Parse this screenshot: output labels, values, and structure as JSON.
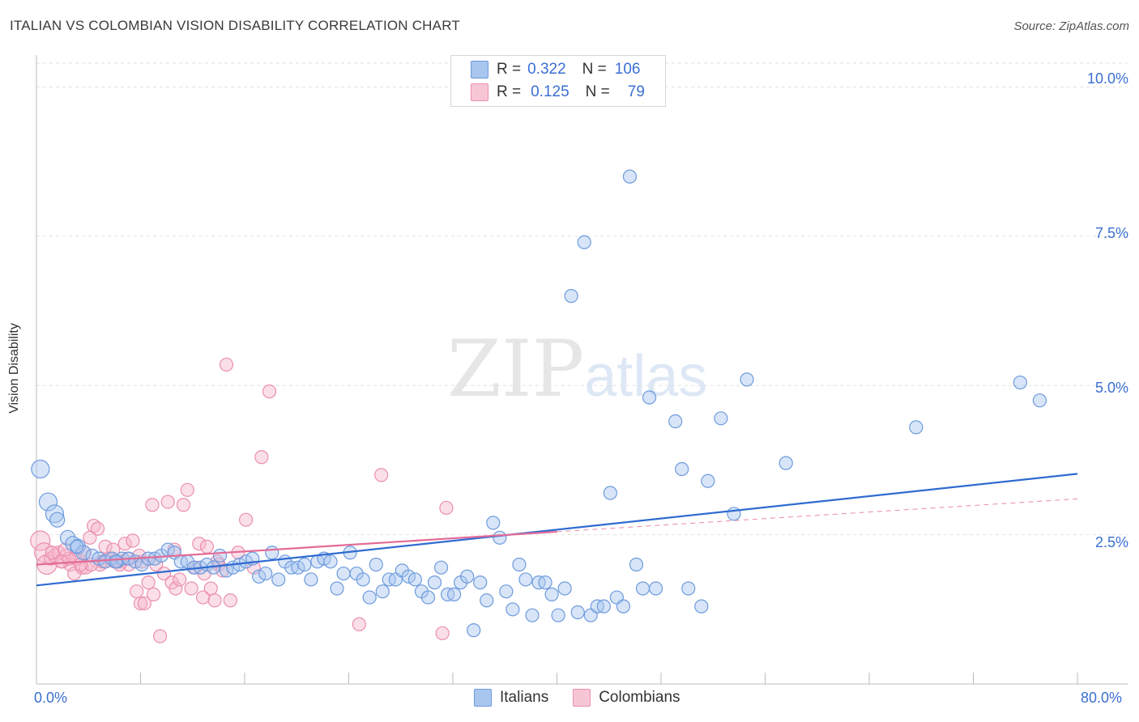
{
  "title": "ITALIAN VS COLOMBIAN VISION DISABILITY CORRELATION CHART",
  "source": "Source: ZipAtlas.com",
  "watermark": {
    "zip": "ZIP",
    "atlas": "atlas"
  },
  "colors": {
    "italians_fill": "#a9c6ef",
    "italians_stroke": "#6d9bdd",
    "italians_line": "#2f6bd1",
    "colombians_fill": "#f7b9cc",
    "colombians_stroke": "#ea8fae",
    "colombians_line": "#e36a96",
    "grid": "#e2e2e2",
    "tick_text": "#3b6fd1"
  },
  "legend_top": {
    "italians": {
      "r_label": "R =",
      "r_value": "0.322",
      "n_label": "N =",
      "n_value": "106"
    },
    "colombians": {
      "r_label": "R =",
      "r_value": "0.125",
      "n_label": "N =",
      "n_value": "79"
    }
  },
  "chart_data": {
    "type": "scatter",
    "title": "ITALIAN VS COLOMBIAN VISION DISABILITY CORRELATION CHART",
    "xlabel": "",
    "ylabel": "Vision Disability",
    "xlim": [
      0,
      80
    ],
    "ylim": [
      0,
      10.4
    ],
    "x_tick_labels": [
      "0.0%",
      "80.0%"
    ],
    "y_ticks": [
      2.5,
      5.0,
      7.5,
      10.0
    ],
    "y_tick_labels": [
      "2.5%",
      "5.0%",
      "7.5%",
      "10.0%"
    ],
    "grid": "horizontal dashed",
    "legend_position": "bottom-center",
    "series": [
      {
        "name": "Italians",
        "r": 0.322,
        "n": 106,
        "trend": {
          "x": [
            0,
            80
          ],
          "y": [
            1.65,
            3.52
          ]
        },
        "points": [
          [
            0.3,
            3.6
          ],
          [
            0.9,
            3.05
          ],
          [
            1.4,
            2.85
          ],
          [
            1.6,
            2.75
          ],
          [
            2.4,
            2.45
          ],
          [
            2.8,
            2.35
          ],
          [
            3.2,
            2.3
          ],
          [
            3.6,
            2.2
          ],
          [
            4.3,
            2.15
          ],
          [
            4.8,
            2.1
          ],
          [
            5.3,
            2.05
          ],
          [
            5.8,
            2.1
          ],
          [
            6.2,
            2.05
          ],
          [
            6.6,
            2.1
          ],
          [
            7.1,
            2.1
          ],
          [
            7.6,
            2.05
          ],
          [
            8.1,
            2.0
          ],
          [
            8.6,
            2.1
          ],
          [
            9.1,
            2.1
          ],
          [
            9.6,
            2.15
          ],
          [
            10.1,
            2.25
          ],
          [
            10.6,
            2.2
          ],
          [
            11.1,
            2.05
          ],
          [
            11.6,
            2.05
          ],
          [
            12.1,
            1.95
          ],
          [
            12.6,
            1.95
          ],
          [
            13.1,
            2.0
          ],
          [
            13.6,
            1.95
          ],
          [
            14.1,
            2.15
          ],
          [
            14.6,
            1.9
          ],
          [
            15.1,
            1.95
          ],
          [
            15.6,
            2.0
          ],
          [
            16.1,
            2.05
          ],
          [
            16.6,
            2.1
          ],
          [
            17.1,
            1.8
          ],
          [
            17.6,
            1.85
          ],
          [
            18.1,
            2.2
          ],
          [
            18.6,
            1.75
          ],
          [
            19.1,
            2.05
          ],
          [
            19.6,
            1.95
          ],
          [
            20.1,
            1.95
          ],
          [
            20.6,
            2.0
          ],
          [
            21.1,
            1.75
          ],
          [
            21.6,
            2.05
          ],
          [
            22.1,
            2.1
          ],
          [
            22.6,
            2.05
          ],
          [
            23.1,
            1.6
          ],
          [
            23.6,
            1.85
          ],
          [
            24.1,
            2.2
          ],
          [
            24.6,
            1.85
          ],
          [
            25.1,
            1.75
          ],
          [
            25.6,
            1.45
          ],
          [
            26.1,
            2.0
          ],
          [
            26.6,
            1.55
          ],
          [
            27.1,
            1.75
          ],
          [
            27.6,
            1.75
          ],
          [
            28.1,
            1.9
          ],
          [
            28.6,
            1.8
          ],
          [
            29.1,
            1.75
          ],
          [
            29.6,
            1.55
          ],
          [
            30.1,
            1.45
          ],
          [
            30.6,
            1.7
          ],
          [
            31.1,
            1.95
          ],
          [
            31.6,
            1.5
          ],
          [
            32.1,
            1.5
          ],
          [
            32.6,
            1.7
          ],
          [
            33.1,
            1.8
          ],
          [
            33.6,
            0.9
          ],
          [
            34.1,
            1.7
          ],
          [
            34.6,
            1.4
          ],
          [
            35.1,
            2.7
          ],
          [
            35.6,
            2.45
          ],
          [
            36.1,
            1.55
          ],
          [
            36.6,
            1.25
          ],
          [
            37.1,
            2.0
          ],
          [
            37.6,
            1.75
          ],
          [
            38.1,
            1.15
          ],
          [
            38.6,
            1.7
          ],
          [
            39.1,
            1.7
          ],
          [
            39.6,
            1.5
          ],
          [
            40.1,
            1.15
          ],
          [
            40.6,
            1.6
          ],
          [
            41.1,
            6.5
          ],
          [
            41.6,
            1.2
          ],
          [
            42.1,
            7.4
          ],
          [
            42.6,
            1.15
          ],
          [
            43.1,
            1.3
          ],
          [
            43.6,
            1.3
          ],
          [
            44.1,
            3.2
          ],
          [
            44.6,
            1.45
          ],
          [
            45.1,
            1.3
          ],
          [
            45.6,
            8.5
          ],
          [
            46.1,
            2.0
          ],
          [
            46.6,
            1.6
          ],
          [
            47.1,
            4.8
          ],
          [
            47.6,
            1.6
          ],
          [
            49.1,
            4.4
          ],
          [
            49.6,
            3.6
          ],
          [
            50.1,
            1.6
          ],
          [
            51.1,
            1.3
          ],
          [
            51.6,
            3.4
          ],
          [
            52.6,
            4.45
          ],
          [
            53.6,
            2.85
          ],
          [
            54.6,
            5.1
          ],
          [
            57.6,
            3.7
          ],
          [
            67.6,
            4.3
          ],
          [
            75.6,
            5.05
          ],
          [
            77.1,
            4.75
          ],
          [
            6.1,
            2.05
          ],
          [
            3.1,
            2.3
          ]
        ]
      },
      {
        "name": "Colombians",
        "r": 0.125,
        "n": 79,
        "trend": {
          "x": [
            0,
            40
          ],
          "y": [
            2.0,
            2.55
          ]
        },
        "points": [
          [
            0.3,
            2.4
          ],
          [
            0.6,
            2.2
          ],
          [
            0.8,
            2.0
          ],
          [
            1.1,
            2.1
          ],
          [
            1.4,
            2.15
          ],
          [
            1.7,
            2.2
          ],
          [
            2.0,
            2.05
          ],
          [
            2.3,
            2.15
          ],
          [
            2.6,
            2.0
          ],
          [
            2.9,
            1.85
          ],
          [
            3.2,
            2.1
          ],
          [
            3.5,
            1.95
          ],
          [
            3.8,
            1.95
          ],
          [
            4.1,
            2.45
          ],
          [
            4.4,
            2.65
          ],
          [
            4.7,
            2.6
          ],
          [
            5.0,
            2.05
          ],
          [
            5.3,
            2.3
          ],
          [
            5.6,
            2.1
          ],
          [
            5.9,
            2.25
          ],
          [
            6.2,
            2.05
          ],
          [
            6.5,
            2.05
          ],
          [
            6.8,
            2.35
          ],
          [
            7.1,
            2.0
          ],
          [
            7.4,
            2.4
          ],
          [
            7.7,
            1.55
          ],
          [
            8.0,
            1.35
          ],
          [
            8.3,
            1.35
          ],
          [
            8.6,
            1.7
          ],
          [
            8.9,
            3.0
          ],
          [
            9.2,
            2.0
          ],
          [
            9.5,
            0.8
          ],
          [
            9.8,
            1.85
          ],
          [
            10.1,
            3.05
          ],
          [
            10.4,
            1.7
          ],
          [
            10.7,
            1.6
          ],
          [
            11.0,
            1.75
          ],
          [
            11.3,
            3.0
          ],
          [
            11.6,
            3.25
          ],
          [
            11.9,
            1.6
          ],
          [
            12.2,
            1.95
          ],
          [
            12.5,
            2.35
          ],
          [
            12.8,
            1.45
          ],
          [
            13.1,
            2.3
          ],
          [
            13.4,
            1.6
          ],
          [
            13.7,
            1.4
          ],
          [
            14.0,
            2.0
          ],
          [
            14.3,
            1.9
          ],
          [
            14.6,
            5.35
          ],
          [
            14.9,
            1.4
          ],
          [
            15.5,
            2.2
          ],
          [
            16.1,
            2.75
          ],
          [
            16.7,
            1.95
          ],
          [
            17.3,
            3.8
          ],
          [
            17.9,
            4.9
          ],
          [
            26.5,
            3.5
          ],
          [
            31.5,
            2.95
          ],
          [
            31.2,
            0.85
          ],
          [
            24.8,
            1.0
          ],
          [
            3.0,
            2.1
          ],
          [
            1.9,
            2.05
          ],
          [
            4.9,
            2.0
          ],
          [
            6.0,
            2.05
          ],
          [
            7.0,
            2.1
          ],
          [
            8.1,
            2.05
          ],
          [
            2.5,
            2.1
          ],
          [
            3.7,
            2.2
          ],
          [
            5.8,
            2.1
          ],
          [
            4.2,
            2.0
          ],
          [
            1.2,
            2.2
          ],
          [
            2.2,
            2.25
          ],
          [
            6.4,
            2.0
          ],
          [
            9.0,
            1.5
          ],
          [
            12.9,
            1.85
          ],
          [
            5.2,
            2.05
          ],
          [
            7.9,
            2.15
          ],
          [
            10.6,
            2.25
          ],
          [
            13.9,
            2.05
          ],
          [
            3.4,
            2.0
          ]
        ]
      }
    ]
  }
}
